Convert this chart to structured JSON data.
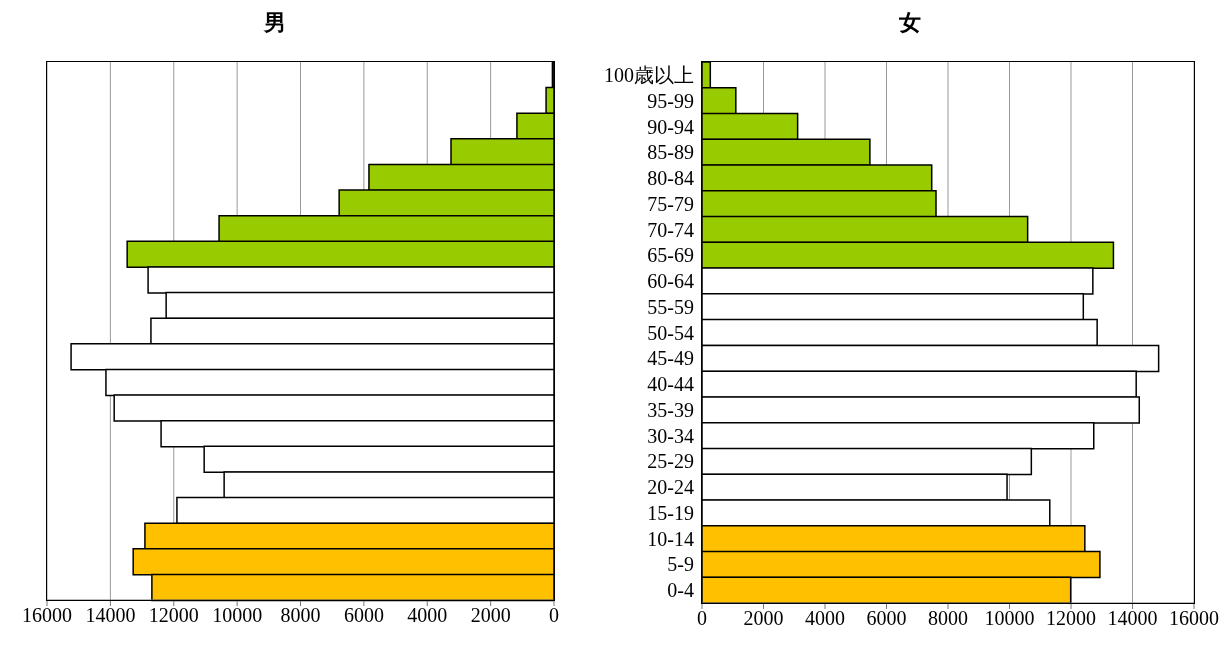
{
  "chart_data": [
    {
      "type": "bar",
      "orientation": "horizontal",
      "title": "男",
      "categories": [
        null,
        null,
        null,
        null,
        null,
        null,
        null,
        null,
        null,
        null,
        null,
        null,
        null,
        null,
        null,
        null,
        null,
        null,
        null,
        null,
        null
      ],
      "values": [
        50,
        250,
        1170,
        3250,
        5840,
        6780,
        10570,
        13470,
        12810,
        12240,
        12720,
        15240,
        14140,
        13880,
        12400,
        11040,
        10410,
        11900,
        12910,
        13280,
        12690
      ],
      "colors": [
        "#99cc00",
        "#99cc00",
        "#99cc00",
        "#99cc00",
        "#99cc00",
        "#99cc00",
        "#99cc00",
        "#99cc00",
        "#ffffff",
        "#ffffff",
        "#ffffff",
        "#ffffff",
        "#ffffff",
        "#ffffff",
        "#ffffff",
        "#ffffff",
        "#ffffff",
        "#ffffff",
        "#ffc000",
        "#ffc000",
        "#ffc000"
      ],
      "xlim": [
        16000,
        0
      ],
      "xticks": [
        16000,
        14000,
        12000,
        10000,
        8000,
        6000,
        4000,
        2000,
        0
      ],
      "grid": "x",
      "tick_labels": "x"
    },
    {
      "type": "bar",
      "orientation": "horizontal",
      "title": "女",
      "categories": [
        "100歳以上",
        "95-99",
        "90-94",
        "85-89",
        "80-84",
        "75-79",
        "70-74",
        "65-69",
        "60-64",
        "55-59",
        "50-54",
        "45-49",
        "40-44",
        "35-39",
        "30-34",
        "25-29",
        "20-24",
        "15-19",
        "10-14",
        "5-9",
        "0-4"
      ],
      "values": [
        270,
        1100,
        3110,
        5460,
        7470,
        7610,
        10590,
        13380,
        12710,
        12400,
        12850,
        14850,
        14120,
        14220,
        12740,
        10710,
        9920,
        11310,
        12450,
        12940,
        11990
      ],
      "colors": [
        "#99cc00",
        "#99cc00",
        "#99cc00",
        "#99cc00",
        "#99cc00",
        "#99cc00",
        "#99cc00",
        "#99cc00",
        "#ffffff",
        "#ffffff",
        "#ffffff",
        "#ffffff",
        "#ffffff",
        "#ffffff",
        "#ffffff",
        "#ffffff",
        "#ffffff",
        "#ffffff",
        "#ffc000",
        "#ffc000",
        "#ffc000"
      ],
      "xlim": [
        0,
        16000
      ],
      "xticks": [
        0,
        2000,
        4000,
        6000,
        8000,
        10000,
        12000,
        14000,
        16000
      ],
      "grid": "x"
    }
  ]
}
